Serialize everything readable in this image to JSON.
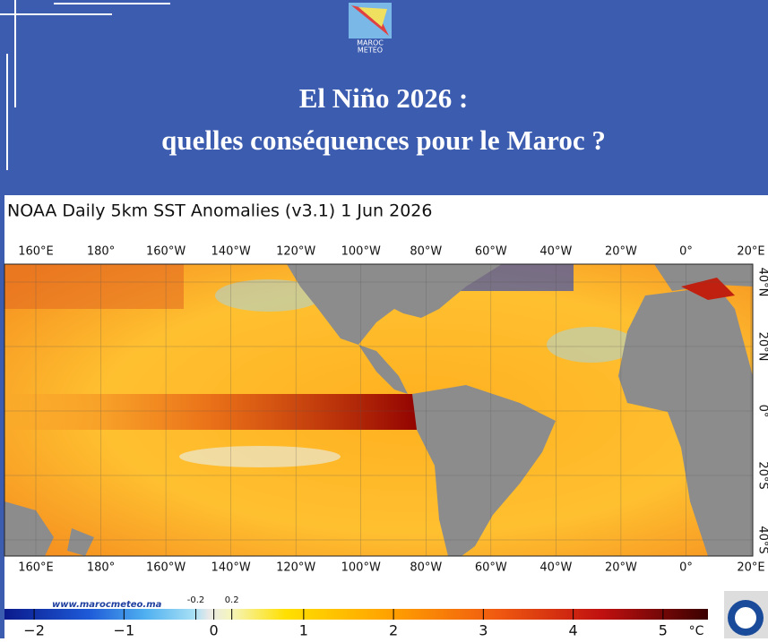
{
  "header": {
    "logo": [
      "MAROC",
      "METEO"
    ],
    "title": [
      "El Niño 2026  :",
      "quelles conséquences  pour le Maroc ?"
    ]
  },
  "map": {
    "title": "NOAA  Daily 5km SST Anomalies  (v3.1)   1 Jun 2026",
    "longitudes": [
      "160°E",
      "180°",
      "160°W",
      "140°W",
      "120°W",
      "100°W",
      "80°W",
      "60°W",
      "40°W",
      "20°W",
      "0°",
      "20°E"
    ],
    "latitudes": [
      "40°N",
      "20°N",
      "0°",
      "20°S",
      "40°S"
    ]
  },
  "footer": {
    "website": "www.marocmeteo.ma"
  },
  "colorbar": {
    "range": [
      -2.33,
      5.5
    ],
    "unit": "°C",
    "ticks": [
      {
        "value": -2,
        "label": "−2"
      },
      {
        "value": -1,
        "label": "−1"
      },
      0,
      1,
      2,
      3,
      4,
      5
    ],
    "minor_ticks": [
      -0.2,
      0.2
    ]
  }
}
